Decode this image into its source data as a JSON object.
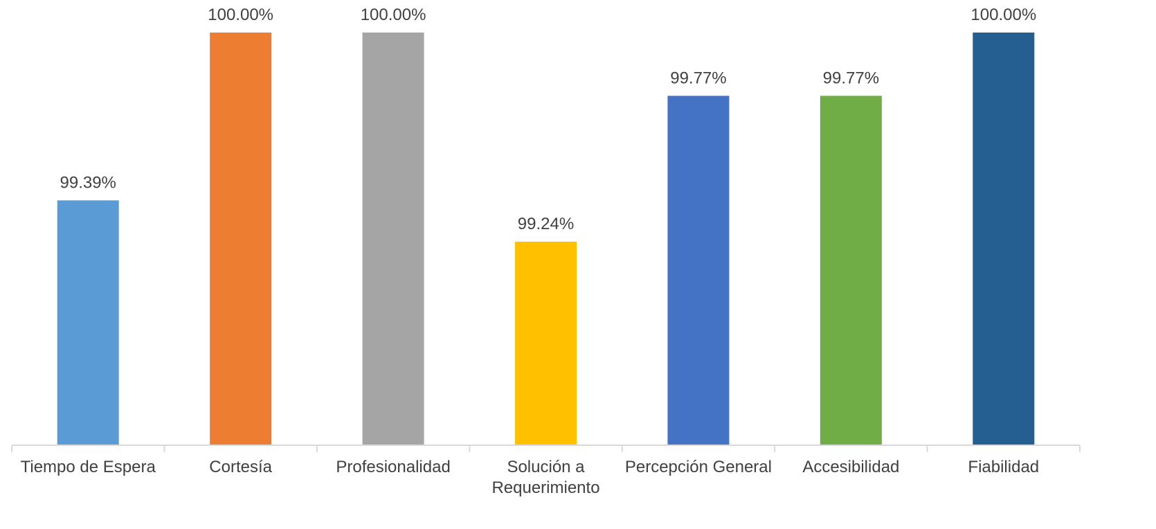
{
  "chart_data": {
    "type": "bar",
    "title": "",
    "xlabel": "",
    "ylabel": "",
    "categories": [
      "Tiempo de Espera",
      "Cortesía",
      "Profesionalidad",
      "Solución a Requerimiento",
      "Percepción General",
      "Accesibilidad",
      "Fiabilidad"
    ],
    "category_label_lines": [
      [
        "Tiempo de Espera"
      ],
      [
        "Cortesía"
      ],
      [
        "Profesionalidad"
      ],
      [
        "Solución a",
        "Requerimiento"
      ],
      [
        "Percepción General"
      ],
      [
        "Accesibilidad"
      ],
      [
        "Fiabilidad"
      ]
    ],
    "values": [
      99.39,
      100.0,
      100.0,
      99.24,
      99.77,
      99.77,
      100.0
    ],
    "value_labels": [
      "99.39%",
      "100.00%",
      "100.00%",
      "99.24%",
      "99.77%",
      "99.77%",
      "100.00%"
    ],
    "colors": [
      "#5B9BD5",
      "#ED7D31",
      "#A5A5A5",
      "#FFC000",
      "#4472C4",
      "#70AD47",
      "#255E91"
    ],
    "ylim": [
      98.5,
      100.0
    ],
    "grid": false,
    "legend": "none"
  }
}
